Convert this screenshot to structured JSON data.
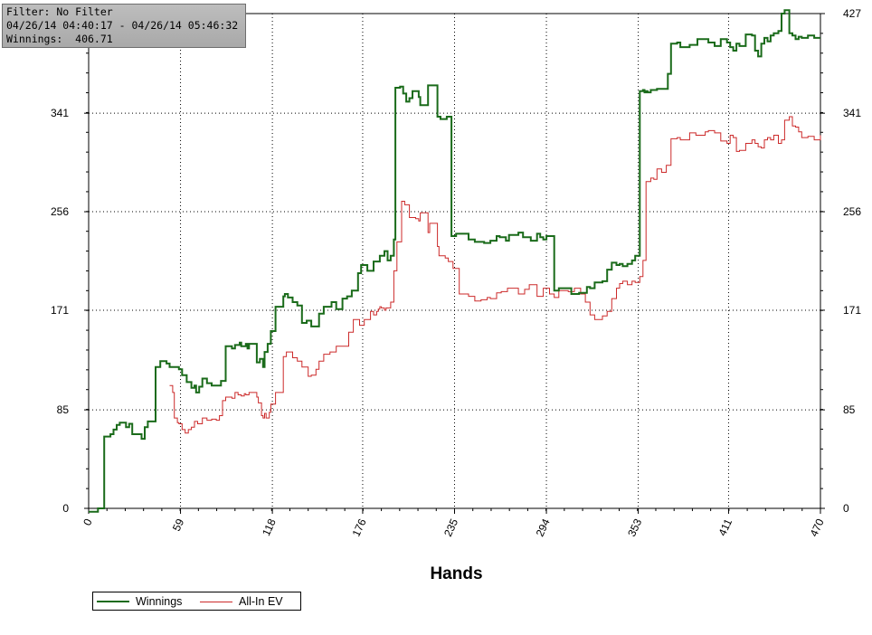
{
  "info": {
    "filter": "Filter: No Filter",
    "range": "04/26/14 04:40:17 - 04/26/14 05:46:32",
    "winnings": "Winnings:  406.71"
  },
  "colors": {
    "winnings": "#1a6b1a",
    "allin_ev": "#cc2a2a",
    "grid": "#000000",
    "background": "#ffffff"
  },
  "legend": {
    "winnings_label": "Winnings",
    "allin_label": "All-In EV"
  },
  "chart_data": {
    "type": "line",
    "title": "",
    "xlabel": "Hands",
    "ylabel": "",
    "xlim": [
      0,
      470
    ],
    "ylim": [
      0,
      427
    ],
    "xticks": [
      "0",
      "59",
      "118",
      "176",
      "235",
      "294",
      "353",
      "411",
      "470"
    ],
    "yticks": [
      "0",
      "85",
      "171",
      "256",
      "341",
      "427"
    ],
    "grid": true,
    "legend_position": "bottom-left",
    "series": [
      {
        "name": "Winnings",
        "x": [
          0,
          4,
          6,
          10,
          14,
          16,
          18,
          20,
          24,
          26,
          28,
          34,
          36,
          38,
          43,
          46,
          48,
          50,
          52,
          58,
          60,
          63,
          66,
          68,
          69,
          71,
          73,
          76,
          79,
          84,
          85,
          88,
          92,
          94,
          97,
          98,
          101,
          102,
          103,
          108,
          110,
          112,
          113,
          115,
          117,
          120,
          125,
          126,
          128,
          131,
          134,
          137,
          140,
          143,
          148,
          151,
          156,
          159,
          163,
          166,
          169,
          173,
          175,
          179,
          183,
          187,
          190,
          192,
          194,
          196,
          197,
          200,
          202,
          204,
          206,
          208,
          212,
          213,
          218,
          224,
          226,
          230,
          233,
          236,
          244,
          248,
          254,
          258,
          262,
          264,
          268,
          270,
          276,
          279,
          284,
          288,
          290,
          292,
          294,
          297,
          299,
          302,
          310,
          315,
          320,
          322,
          325,
          330,
          333,
          336,
          339,
          341,
          343,
          346,
          349,
          351,
          354,
          356,
          357,
          358,
          359,
          361,
          365,
          368,
          372,
          374,
          378,
          380,
          386,
          391,
          396,
          398,
          402,
          406,
          410,
          412,
          414,
          416,
          418,
          422,
          426,
          428,
          430,
          432,
          434,
          436,
          438,
          440,
          443,
          445,
          447,
          450,
          452,
          454,
          456,
          458,
          462,
          466,
          470
        ],
        "values": [
          -3,
          -3,
          0,
          62,
          64,
          68,
          72,
          74,
          70,
          73,
          64,
          60,
          70,
          75,
          122,
          127,
          127,
          125,
          122,
          120,
          115,
          109,
          104,
          106,
          100,
          105,
          112,
          108,
          106,
          106,
          110,
          140,
          138,
          141,
          143,
          140,
          142,
          138,
          142,
          126,
          129,
          122,
          135,
          142,
          153,
          174,
          183,
          185,
          182,
          178,
          175,
          160,
          162,
          157,
          168,
          174,
          178,
          172,
          181,
          183,
          188,
          203,
          210,
          205,
          213,
          218,
          222,
          214,
          218,
          232,
          363,
          364,
          358,
          351,
          354,
          360,
          355,
          348,
          365,
          338,
          336,
          338,
          235,
          237,
          232,
          230,
          229,
          231,
          235,
          234,
          231,
          236,
          238,
          234,
          231,
          237,
          234,
          232,
          235,
          235,
          188,
          190,
          185,
          186,
          191,
          190,
          195,
          196,
          206,
          212,
          210,
          211,
          209,
          211,
          214,
          218,
          360,
          361,
          359,
          360,
          359,
          361,
          362,
          362,
          375,
          401,
          402,
          398,
          400,
          405,
          405,
          402,
          399,
          405,
          402,
          398,
          395,
          401,
          399,
          409,
          408,
          395,
          390,
          401,
          406,
          403,
          408,
          410,
          412,
          427,
          430,
          410,
          408,
          405,
          407,
          406,
          408,
          406,
          406
        ]
      },
      {
        "name": "All-In EV",
        "x": [
          52,
          54,
          55,
          57,
          58,
          60,
          62,
          64,
          66,
          68,
          70,
          73,
          76,
          79,
          82,
          84,
          86,
          88,
          92,
          94,
          96,
          98,
          100,
          101,
          103,
          108,
          109,
          111,
          112,
          113,
          114,
          116,
          117,
          120,
          125,
          127,
          131,
          134,
          137,
          141,
          143,
          146,
          148,
          151,
          155,
          159,
          163,
          167,
          170,
          174,
          177,
          181,
          183,
          185,
          186,
          187,
          188,
          190,
          191,
          194,
          196,
          198,
          201,
          203,
          206,
          210,
          212,
          213,
          218,
          219,
          224,
          225,
          229,
          231,
          234,
          238,
          244,
          248,
          252,
          256,
          258,
          262,
          265,
          269,
          276,
          280,
          283,
          288,
          292,
          296,
          299,
          302,
          308,
          312,
          316,
          319,
          322,
          325,
          330,
          333,
          336,
          339,
          341,
          343,
          346,
          349,
          351,
          354,
          356,
          358,
          361,
          363,
          365,
          368,
          371,
          374,
          378,
          380,
          386,
          390,
          396,
          398,
          402,
          406,
          410,
          412,
          414,
          416,
          418,
          422,
          426,
          428,
          430,
          432,
          434,
          436,
          438,
          440,
          443,
          445,
          447,
          450,
          452,
          454,
          456,
          458,
          462,
          466,
          470
        ],
        "values": [
          106,
          100,
          78,
          74,
          73,
          68,
          65,
          68,
          70,
          75,
          73,
          78,
          76,
          77,
          76,
          80,
          93,
          96,
          95,
          100,
          98,
          97,
          99,
          98,
          100,
          96,
          91,
          80,
          78,
          82,
          78,
          83,
          90,
          100,
          131,
          135,
          130,
          127,
          122,
          114,
          115,
          120,
          127,
          133,
          135,
          140,
          140,
          152,
          163,
          158,
          163,
          170,
          167,
          170,
          172,
          174,
          173,
          171,
          173,
          178,
          205,
          230,
          265,
          262,
          251,
          250,
          248,
          255,
          238,
          246,
          226,
          218,
          216,
          213,
          207,
          185,
          183,
          179,
          180,
          182,
          181,
          186,
          187,
          190,
          185,
          189,
          193,
          183,
          190,
          185,
          182,
          188,
          187,
          190,
          185,
          178,
          167,
          163,
          166,
          170,
          181,
          190,
          194,
          196,
          193,
          196,
          195,
          200,
          214,
          282,
          285,
          284,
          293,
          290,
          296,
          319,
          320,
          318,
          324,
          322,
          325,
          326,
          324,
          317,
          315,
          322,
          320,
          308,
          309,
          315,
          318,
          315,
          312,
          311,
          318,
          320,
          318,
          322,
          315,
          318,
          335,
          338,
          330,
          329,
          325,
          320,
          321,
          318,
          322
        ]
      }
    ]
  }
}
